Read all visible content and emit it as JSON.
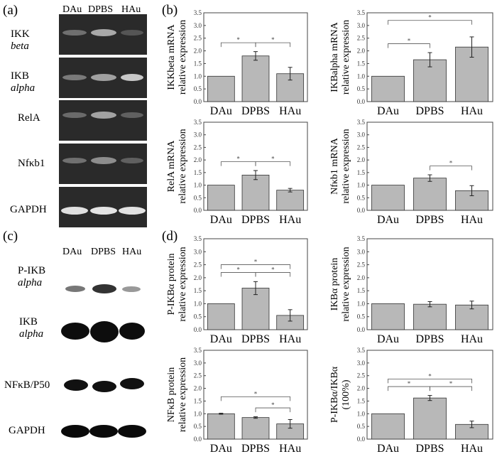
{
  "panels": {
    "a": "(a)",
    "b": "(b)",
    "c": "(c)",
    "d": "(d)"
  },
  "gel_a": {
    "lanes": [
      "DAu",
      "DPBS",
      "HAu"
    ],
    "rows": [
      {
        "line1": "IKK",
        "line2": "beta",
        "italic2": true
      },
      {
        "line1": "IKB",
        "line2": "alpha",
        "italic2": true
      },
      {
        "line1": "RelA",
        "line2": "",
        "italic2": false
      },
      {
        "line1": "Nfκb1",
        "line2": "",
        "italic2": false
      },
      {
        "line1": "GAPDH",
        "line2": "",
        "italic2": false
      }
    ]
  },
  "blot_c": {
    "lanes": [
      "DAu",
      "DPBS",
      "HAu"
    ],
    "rows": [
      {
        "line1": "P-IKB",
        "line2": "alpha"
      },
      {
        "line1": "IKB",
        "line2": "alpha"
      },
      {
        "line1": "NFκB/P50",
        "line2": ""
      },
      {
        "line1": "GAPDH",
        "line2": ""
      }
    ]
  },
  "chart_data": [
    {
      "type": "bar",
      "ylabel1": "IKKbeta mRNA",
      "ylabel2": "relative expression",
      "categories": [
        "DAu",
        "DPBS",
        "HAu"
      ],
      "values": [
        1.0,
        1.8,
        1.1
      ],
      "errors": [
        0,
        0.17,
        0.25
      ],
      "ylim": [
        0,
        3.5
      ],
      "ticks": [
        "0.0",
        "0.5",
        "1.0",
        "1.5",
        "2.0",
        "2.5",
        "3.0",
        "3.5"
      ],
      "signif": [
        {
          "from": 0,
          "to": 1,
          "label": "*"
        },
        {
          "from": 1,
          "to": 2,
          "label": "*"
        }
      ]
    },
    {
      "type": "bar",
      "ylabel1": "IKBalpha mRNA",
      "ylabel2": "relative expression",
      "categories": [
        "DAu",
        "DPBS",
        "HAu"
      ],
      "values": [
        1.0,
        1.65,
        2.15
      ],
      "errors": [
        0,
        0.28,
        0.4
      ],
      "ylim": [
        0,
        3.5
      ],
      "ticks": [
        "0.0",
        "0.5",
        "1.0",
        "1.5",
        "2.0",
        "2.5",
        "3.0",
        "3.5"
      ],
      "signif": [
        {
          "from": 0,
          "to": 1,
          "label": "*"
        },
        {
          "from": 0,
          "to": 2,
          "label": "*"
        }
      ]
    },
    {
      "type": "bar",
      "ylabel1": "RelA mRNA",
      "ylabel2": "relative expression",
      "categories": [
        "DAu",
        "DPBS",
        "HAu"
      ],
      "values": [
        1.0,
        1.4,
        0.8
      ],
      "errors": [
        0,
        0.18,
        0.07
      ],
      "ylim": [
        0,
        3.5
      ],
      "ticks": [
        "0.0",
        "0.5",
        "1.0",
        "1.5",
        "2.0",
        "2.5",
        "3.0",
        "3.5"
      ],
      "signif": [
        {
          "from": 0,
          "to": 1,
          "label": "*"
        },
        {
          "from": 1,
          "to": 2,
          "label": "*"
        }
      ]
    },
    {
      "type": "bar",
      "ylabel1": "Nfκb1 mRNA",
      "ylabel2": "relative expression",
      "categories": [
        "DAu",
        "DPBS",
        "HAu"
      ],
      "values": [
        1.0,
        1.28,
        0.78
      ],
      "errors": [
        0,
        0.13,
        0.2
      ],
      "ylim": [
        0,
        3.5
      ],
      "ticks": [
        "0.0",
        "0.5",
        "1.0",
        "1.5",
        "2.0",
        "2.5",
        "3.0",
        "3.5"
      ],
      "signif": [
        {
          "from": 1,
          "to": 2,
          "label": "*"
        }
      ]
    },
    {
      "type": "bar",
      "ylabel1": "P-IKBα protein",
      "ylabel2": "relative expression",
      "categories": [
        "DAu",
        "DPBS",
        "HAu"
      ],
      "values": [
        1.0,
        1.6,
        0.55
      ],
      "errors": [
        0,
        0.25,
        0.22
      ],
      "ylim": [
        0,
        3.5
      ],
      "ticks": [
        "0.0",
        "0.5",
        "1.0",
        "1.5",
        "2.0",
        "2.5",
        "3.0",
        "3.5"
      ],
      "signif": [
        {
          "from": 0,
          "to": 1,
          "label": "*"
        },
        {
          "from": 1,
          "to": 2,
          "label": "*"
        },
        {
          "from": 0,
          "to": 2,
          "label": "*"
        }
      ]
    },
    {
      "type": "bar",
      "ylabel1": "IKBα protein",
      "ylabel2": "relative expression",
      "categories": [
        "DAu",
        "DPBS",
        "HAu"
      ],
      "values": [
        1.0,
        0.98,
        0.95
      ],
      "errors": [
        0,
        0.1,
        0.15
      ],
      "ylim": [
        0,
        3.5
      ],
      "ticks": [
        "0.0",
        "0.5",
        "1.0",
        "1.5",
        "2.0",
        "2.5",
        "3.0",
        "3.5"
      ],
      "signif": []
    },
    {
      "type": "bar",
      "ylabel1": "NFκB protein",
      "ylabel2": "relative expression",
      "categories": [
        "DAu",
        "DPBS",
        "HAu"
      ],
      "values": [
        1.0,
        0.85,
        0.6
      ],
      "errors": [
        0.02,
        0.03,
        0.17
      ],
      "ylim": [
        0,
        3.5
      ],
      "ticks": [
        "0.0",
        "0.5",
        "1.0",
        "1.5",
        "2.0",
        "2.5",
        "3.0",
        "3.5"
      ],
      "signif": [
        {
          "from": 1,
          "to": 2,
          "label": "*"
        },
        {
          "from": 0,
          "to": 2,
          "label": "*"
        }
      ]
    },
    {
      "type": "bar",
      "ylabel1": "P-IKBα/IKBα",
      "ylabel2": "(100%)",
      "categories": [
        "DAu",
        "DPBS",
        "HAu"
      ],
      "values": [
        1.0,
        1.62,
        0.58
      ],
      "errors": [
        0,
        0.1,
        0.13
      ],
      "ylim": [
        0,
        3.5
      ],
      "ticks": [
        "0.0",
        "0.5",
        "1.0",
        "1.5",
        "2.0",
        "2.5",
        "3.0",
        "3.5"
      ],
      "signif": [
        {
          "from": 0,
          "to": 1,
          "label": "*"
        },
        {
          "from": 1,
          "to": 2,
          "label": "*"
        },
        {
          "from": 0,
          "to": 2,
          "label": "*"
        }
      ]
    }
  ],
  "colors": {
    "bar": "#b8b8b8",
    "bar_edge": "#333333",
    "gel_bg": "#262626",
    "gel_band": "#d9d9d9",
    "blot_band": "#111111"
  }
}
